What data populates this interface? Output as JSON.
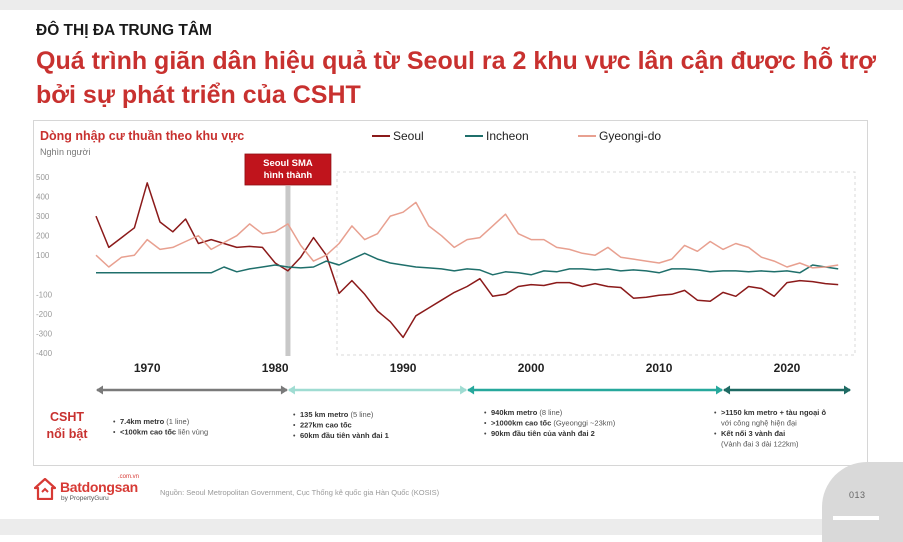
{
  "header": {
    "section": "ĐÔ THỊ ĐA TRUNG TÂM",
    "title_line1": "Quá trình giãn dân hiệu quả từ Seoul ra 2 khu vực lân cận được hỗ trợ",
    "title_line2": "bởi sự phát triển của CSHT"
  },
  "chart_data": {
    "type": "line",
    "title": "Dòng nhập cư thuần theo khu vực",
    "ylabel": "Nghìn người",
    "ylim": [
      -400,
      500
    ],
    "yticks": [
      "500",
      "400",
      "300",
      "200",
      "100",
      "-100",
      "-200",
      "-300",
      "-400"
    ],
    "xlim": [
      1966,
      2025
    ],
    "xticks": [
      "1970",
      "1980",
      "1990",
      "2000",
      "2010",
      "2020"
    ],
    "grid": false,
    "legend": "top",
    "annotation": {
      "text_line1": "Seoul SMA",
      "text_line2": "hình thành",
      "year": 1981
    },
    "x": [
      1966,
      1967,
      1968,
      1969,
      1970,
      1971,
      1972,
      1973,
      1974,
      1975,
      1976,
      1977,
      1978,
      1979,
      1980,
      1981,
      1982,
      1983,
      1984,
      1985,
      1986,
      1987,
      1988,
      1989,
      1990,
      1991,
      1992,
      1993,
      1994,
      1995,
      1996,
      1997,
      1998,
      1999,
      2000,
      2001,
      2002,
      2003,
      2004,
      2005,
      2006,
      2007,
      2008,
      2009,
      2010,
      2011,
      2012,
      2013,
      2014,
      2015,
      2016,
      2017,
      2018,
      2019,
      2020,
      2021,
      2022,
      2023,
      2024
    ],
    "series": [
      {
        "name": "Seoul",
        "color": "#8b1a1a",
        "values": [
          300,
          140,
          190,
          240,
          470,
          270,
          220,
          285,
          160,
          180,
          160,
          140,
          145,
          140,
          60,
          20,
          90,
          190,
          100,
          -95,
          -30,
          -100,
          -185,
          -240,
          -320,
          -210,
          -170,
          -130,
          -90,
          -60,
          -20,
          -110,
          -100,
          -60,
          -50,
          -55,
          -40,
          -40,
          -60,
          -45,
          -60,
          -65,
          -120,
          -115,
          -105,
          -100,
          -80,
          -130,
          -135,
          -90,
          -110,
          -60,
          -70,
          -110,
          -40,
          -30,
          -35,
          -45,
          -50
        ]
      },
      {
        "name": "Incheon",
        "color": "#1f6f6b",
        "values": [
          10,
          10,
          10,
          10,
          10,
          10,
          10,
          10,
          10,
          10,
          40,
          15,
          30,
          40,
          50,
          40,
          35,
          40,
          70,
          50,
          80,
          110,
          80,
          60,
          50,
          40,
          35,
          30,
          20,
          30,
          25,
          0,
          15,
          10,
          0,
          20,
          15,
          30,
          30,
          25,
          30,
          20,
          25,
          20,
          10,
          30,
          30,
          25,
          15,
          20,
          20,
          15,
          20,
          15,
          20,
          10,
          50,
          40,
          30
        ]
      },
      {
        "name": "Gyeongi-do",
        "color": "#e8a090",
        "values": [
          100,
          40,
          90,
          100,
          180,
          130,
          140,
          170,
          200,
          130,
          165,
          200,
          260,
          210,
          220,
          260,
          150,
          70,
          100,
          160,
          250,
          180,
          210,
          300,
          320,
          370,
          250,
          200,
          140,
          180,
          190,
          250,
          310,
          210,
          180,
          180,
          140,
          130,
          110,
          100,
          140,
          90,
          80,
          70,
          60,
          80,
          150,
          120,
          170,
          130,
          160,
          140,
          90,
          70,
          40,
          60,
          35,
          40,
          50
        ]
      }
    ]
  },
  "timeline": [
    {
      "from": 1966,
      "to": 1981,
      "color": "#7a7a7a"
    },
    {
      "from": 1981,
      "to": 1995,
      "color": "#9fdcd2"
    },
    {
      "from": 1995,
      "to": 2015,
      "color": "#26a89c"
    },
    {
      "from": 2015,
      "to": 2025,
      "color": "#1e6a63"
    }
  ],
  "csht": {
    "label_line1": "CSHT",
    "label_line2": "nổi bật",
    "blocks": [
      {
        "lines": [
          {
            "bold": "7.4km metro",
            "rest": " (1 line)"
          },
          {
            "bold": "<100km cao tốc",
            "rest": " liên vùng"
          }
        ]
      },
      {
        "lines": [
          {
            "bold": "135 km metro",
            "rest": " (5 line)"
          },
          {
            "bold": "227km cao tốc",
            "rest": ""
          },
          {
            "bold": "60km đầu tiên vành đai 1",
            "rest": ""
          }
        ]
      },
      {
        "lines": [
          {
            "bold": "940km metro",
            "rest": " (8 line)"
          },
          {
            "bold": ">1000km cao tốc",
            "rest": " (Gyeonggi ~23km)"
          },
          {
            "bold": "90km đầu tiên của vành đai 2",
            "rest": ""
          }
        ]
      },
      {
        "lines": [
          {
            "bold": ">1150 km metro + tàu ngoại ô",
            "rest": ""
          },
          {
            "bold": "",
            "rest": "với công nghệ hiện đại"
          },
          {
            "bold": "Kết nối 3 vành đai",
            "rest": ""
          },
          {
            "bold": "",
            "rest": "(Vành đai 3 dài 122km)"
          }
        ]
      }
    ]
  },
  "footer": {
    "source": "Nguồn: Seoul Metropolitan Government, Cục Thống kê quốc gia Hàn Quốc (KOSIS)",
    "logo_name": "Batdongsan",
    "logo_domain": ".com.vn",
    "logo_sub": "by PropertyGuru",
    "page_number": "013",
    "brand_color": "#d73a35"
  }
}
